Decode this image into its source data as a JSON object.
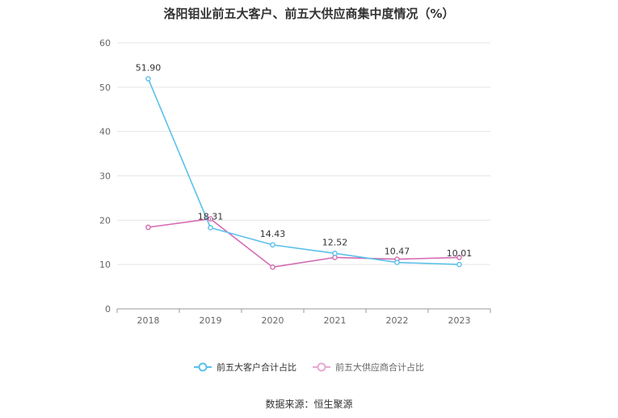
{
  "title": "洛阳钼业前五大客户、前五大供应商集中度情况（%）",
  "source": "数据来源：恒生聚源",
  "chart_data": {
    "type": "line",
    "title": "洛阳钼业前五大客户、前五大供应商集中度情况（%）",
    "categories": [
      "2018",
      "2019",
      "2020",
      "2021",
      "2022",
      "2023"
    ],
    "ylim": [
      0,
      60
    ],
    "yticks": [
      0,
      10,
      20,
      30,
      40,
      50,
      60
    ],
    "grid": true,
    "legend_position": "bottom",
    "series": [
      {
        "name": "前五大客户合计占比",
        "color": "#5bc0eb",
        "values": [
          51.9,
          18.31,
          14.43,
          12.52,
          10.47,
          10.01
        ],
        "data_labels": [
          "51.90",
          "18.31",
          "14.43",
          "12.52",
          "10.47",
          "10.01"
        ]
      },
      {
        "name": "前五大供应商合计占比",
        "color": "#d46bb2",
        "values": [
          18.4,
          20.3,
          9.4,
          11.6,
          11.2,
          11.6
        ],
        "data_labels": []
      }
    ]
  }
}
